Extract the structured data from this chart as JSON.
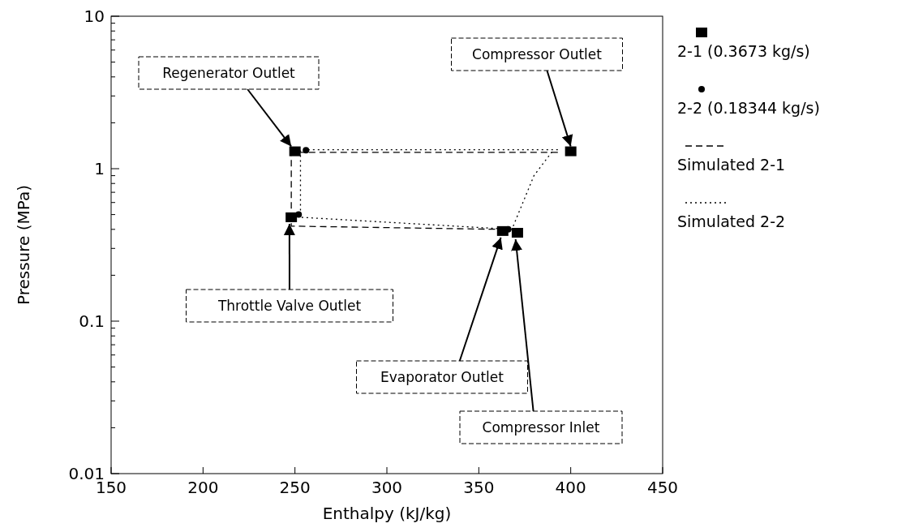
{
  "chart_data": {
    "type": "scatter",
    "xlabel": "Enthalpy (kJ/kg)",
    "ylabel": "Pressure (MPa)",
    "xlim": [
      150,
      450
    ],
    "xticks": [
      150,
      200,
      250,
      300,
      350,
      400,
      450
    ],
    "ylim": [
      0.01,
      10
    ],
    "yticks": [
      0.01,
      0.1,
      1,
      10
    ],
    "log": true,
    "grid": false,
    "legend": "right",
    "series": [
      {
        "name": "2-1 (0.3673 kg/s)",
        "marker": "square",
        "color": "#000000",
        "x": [
          250,
          400,
          248,
          363,
          371
        ],
        "values": [
          1.3,
          1.3,
          0.48,
          0.39,
          0.38
        ]
      },
      {
        "name": "2-2 (0.18344 kg/s)",
        "marker": "circle",
        "color": "#000000",
        "x": [
          256,
          366,
          252
        ],
        "values": [
          1.32,
          0.4,
          0.5
        ]
      },
      {
        "name": "Simulated 2-1",
        "type": "line",
        "line_style": "dashed",
        "color": "#000000",
        "x": [
          393,
          248,
          248,
          362
        ],
        "values": [
          1.28,
          1.28,
          0.42,
          0.4
        ]
      },
      {
        "name": "Simulated 2-2",
        "type": "line",
        "line_style": "dotted",
        "color": "#000000",
        "x": [
          393,
          253,
          253,
          368,
          380,
          390
        ],
        "values": [
          1.33,
          1.33,
          0.48,
          0.4,
          0.9,
          1.3
        ]
      }
    ],
    "annotations": [
      {
        "text": "Regenerator Outlet",
        "x": 248,
        "y": 1.3
      },
      {
        "text": "Compressor Outlet",
        "x": 400,
        "y": 1.3
      },
      {
        "text": "Throttle Valve Outlet",
        "x": 247,
        "y": 0.48
      },
      {
        "text": "Evaporator Outlet",
        "x": 362,
        "y": 0.39
      },
      {
        "text": "Compressor Inlet",
        "x": 370,
        "y": 0.38
      }
    ]
  }
}
